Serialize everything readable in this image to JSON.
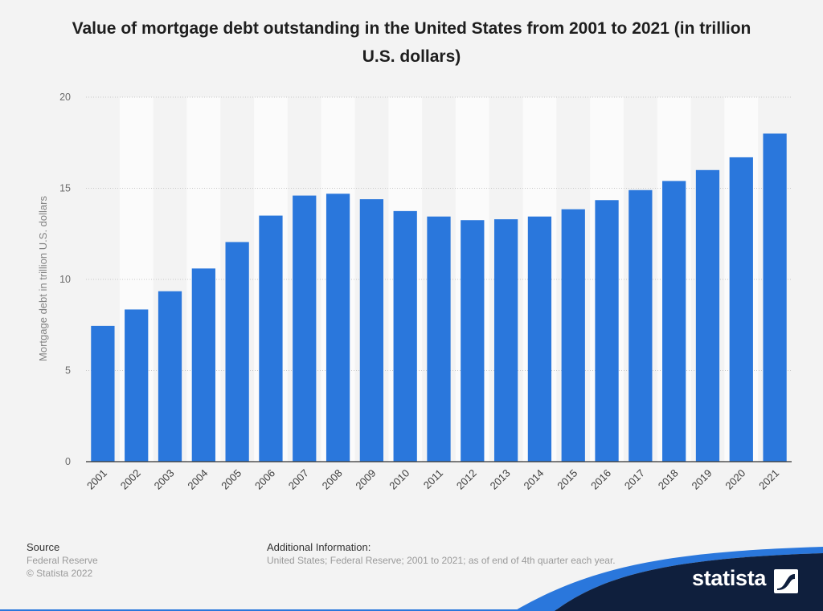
{
  "chart_data": {
    "type": "bar",
    "title": "Value of mortgage debt outstanding in the United States from 2001 to 2021 (in trillion U.S. dollars)",
    "xlabel": "",
    "ylabel": "Mortgage debt in trillion U.S. dollars",
    "categories": [
      "2001",
      "2002",
      "2003",
      "2004",
      "2005",
      "2006",
      "2007",
      "2008",
      "2009",
      "2010",
      "2011",
      "2012",
      "2013",
      "2014",
      "2015",
      "2016",
      "2017",
      "2018",
      "2019",
      "2020",
      "2021"
    ],
    "values": [
      7.45,
      8.35,
      9.35,
      10.6,
      12.05,
      13.5,
      14.6,
      14.7,
      14.4,
      13.75,
      13.45,
      13.25,
      13.3,
      13.45,
      13.85,
      14.35,
      14.9,
      15.4,
      16.0,
      16.7,
      18.0
    ],
    "ylim": [
      0,
      20
    ],
    "yticks": [
      0,
      5,
      10,
      15,
      20
    ],
    "grid": true
  },
  "colors": {
    "bar": "#2a77dc",
    "background": "#f3f3f3",
    "band": "#fbfbfb",
    "grid": "#c8c8c8",
    "axis": "#333333",
    "footer_navy": "#0f1f3d",
    "footer_accent": "#2a77dc"
  },
  "footer": {
    "source_label": "Source",
    "source_lines": [
      "Federal Reserve",
      "© Statista 2022"
    ],
    "additional_label": "Additional Information:",
    "additional_text": "United States; Federal Reserve; 2001 to 2021; as of end of 4th quarter each year."
  },
  "brand": {
    "logo_text": "statista",
    "logo_icon": "statista-logo-icon"
  }
}
